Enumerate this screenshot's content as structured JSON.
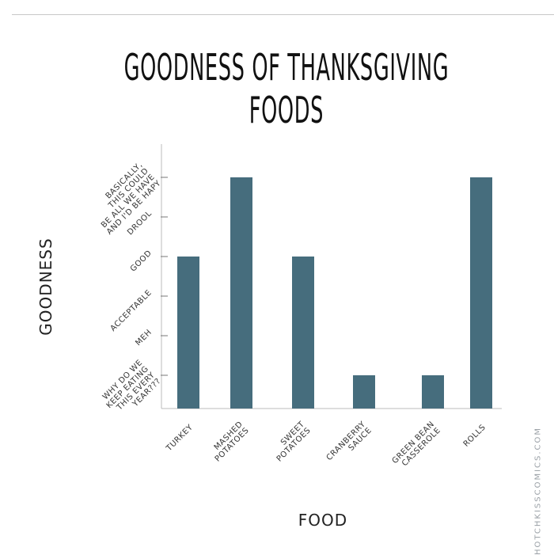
{
  "chart_data": {
    "type": "bar",
    "title": "GOODNESS OF THANKSGIVING FOODS",
    "xlabel": "FOOD",
    "ylabel": "GOODNESS",
    "categories": [
      "TURKEY",
      "MASHED POTATOES",
      "SWEET POTATOES",
      "CRANBERRY SAUCE",
      "GREEN BEAN CASSEROLE",
      "ROLLS"
    ],
    "category_lines": [
      [
        "TURKEY"
      ],
      [
        "MASHED",
        "POTATOES"
      ],
      [
        "SWEET",
        "POTATOES"
      ],
      [
        "CRANBERRY",
        "SAUCE"
      ],
      [
        "GREEN BEAN",
        "CASSEROLE"
      ],
      [
        "ROLLS"
      ]
    ],
    "values": [
      4,
      6,
      4,
      1,
      1,
      6
    ],
    "y_levels": [
      {
        "value": 1,
        "lines": [
          "WHY DO WE",
          "KEEP EATING",
          "THIS EVERY",
          "YEAR???"
        ]
      },
      {
        "value": 2,
        "lines": [
          "MEH"
        ]
      },
      {
        "value": 3,
        "lines": [
          "ACCEPTABLE"
        ]
      },
      {
        "value": 4,
        "lines": [
          "GOOD"
        ]
      },
      {
        "value": 5,
        "lines": [
          "DROOL"
        ]
      },
      {
        "value": 6,
        "lines": [
          "BASICALLY,",
          "THIS COULD",
          "BE ALL WE HAVE",
          "AND I'D BE HAPY"
        ]
      }
    ],
    "ylim": [
      0,
      6.8
    ],
    "bar_color": "#466d7d",
    "axis_color": "#bbbbbb",
    "grid": false,
    "legend": "none"
  },
  "watermark": "HOTCHKISSCOMICS.COM"
}
